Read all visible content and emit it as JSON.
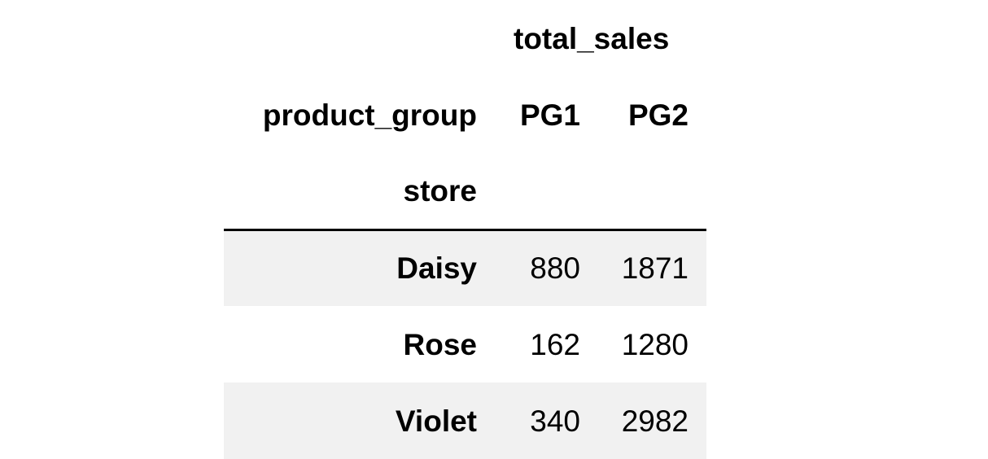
{
  "table": {
    "column_group": "total_sales",
    "columns_name": "product_group",
    "columns": [
      "PG1",
      "PG2"
    ],
    "index_name": "store",
    "rows": [
      {
        "label": "Daisy",
        "values": [
          "880",
          "1871"
        ]
      },
      {
        "label": "Rose",
        "values": [
          "162",
          "1280"
        ]
      },
      {
        "label": "Violet",
        "values": [
          "340",
          "2982"
        ]
      }
    ]
  }
}
